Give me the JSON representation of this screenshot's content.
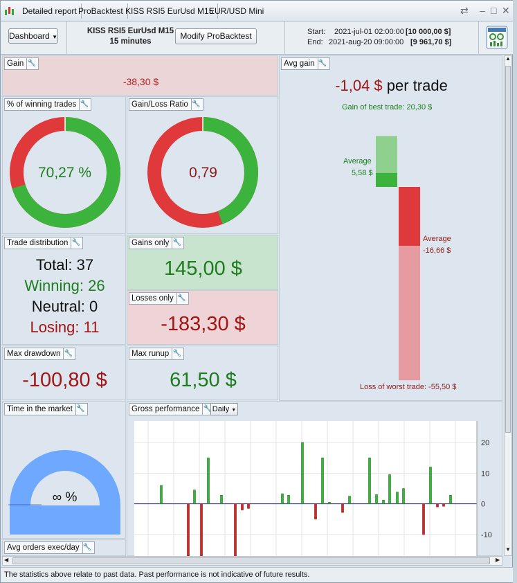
{
  "tabs": [
    {
      "label": "Detailed report"
    },
    {
      "label": "ProBacktest"
    },
    {
      "label": "KISS RSI5 EurUsd M15"
    },
    {
      "label": "EUR/USD Mini"
    }
  ],
  "header": {
    "dashboard_label": "Dashboard",
    "system_name": "KISS RSI5 EurUsd M15",
    "timeframe": "15 minutes",
    "modify_label": "Modify ProBacktest",
    "start_label": "Start:",
    "start_date": "2021-jul-01 02:00:00",
    "start_value": "[10 000,00 $]",
    "end_label": "End:",
    "end_date": "2021-aug-20 09:00:00",
    "end_value": "[9 961,70 $]"
  },
  "gain": {
    "label": "Gain",
    "value": "-38,30 $"
  },
  "winning_pct": {
    "label": "% of winning trades",
    "value": "70,27 %",
    "fraction": 0.7027
  },
  "gain_loss_ratio": {
    "label": "Gain/Loss Ratio",
    "value": "0,79",
    "fraction": 0.4413
  },
  "avg_gain": {
    "label": "Avg gain",
    "value": "-1,04 $",
    "suffix": "per trade",
    "best_label": "Gain of best trade: 20,30 $",
    "avg_gain_label": "Average",
    "avg_gain_value": "5,58 $",
    "avg_loss_label": "Average",
    "avg_loss_value": "-16,66 $",
    "worst_label": "Loss of worst trade: -55,50 $",
    "best": 20.3,
    "avg_pos": 5.58,
    "avg_neg": -16.66,
    "worst": -55.5
  },
  "trade_dist": {
    "label": "Trade distribution",
    "total": "Total: 37",
    "winning": "Winning: 26",
    "neutral": "Neutral: 0",
    "losing": "Losing: 11"
  },
  "gains_only": {
    "label": "Gains only",
    "value": "145,00 $"
  },
  "losses_only": {
    "label": "Losses only",
    "value": "-183,30 $"
  },
  "max_drawdown": {
    "label": "Max drawdown",
    "value": "-100,80 $"
  },
  "max_runup": {
    "label": "Max runup",
    "value": "61,50 $"
  },
  "time_in_market": {
    "label": "Time in the market",
    "value": "∞ %"
  },
  "avg_orders": {
    "label": "Avg orders exec/day"
  },
  "gross_perf": {
    "label": "Gross performance",
    "period": "Daily"
  },
  "chart_data": {
    "type": "bar",
    "title": "",
    "ylim": [
      -17,
      27
    ],
    "yticks": [
      "20",
      "10",
      "0",
      "-10"
    ],
    "values": [
      6,
      -17,
      4.5,
      -17,
      15,
      2.8,
      -17,
      -2,
      -1.5,
      3.3,
      2.8,
      20,
      -5,
      15,
      0.5,
      -2.8,
      2.5,
      15,
      3,
      1.2,
      9.5,
      3.8,
      5,
      -10,
      12,
      -1,
      -0.8,
      2.8
    ]
  },
  "disclaimer": "The statistics above relate to past data. Past performance is not indicative of future results.",
  "colors": {
    "green": "#3cb33c",
    "red": "#e0393c",
    "gain_bg": "#ebd5d7",
    "gains_bg": "#c8e4cf",
    "losses_bg": "#eed4d6",
    "gauge": "#6ea8ff"
  }
}
